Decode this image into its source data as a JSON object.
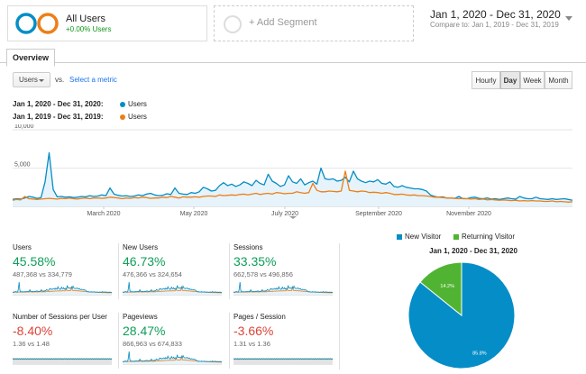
{
  "segments": {
    "primary": {
      "title": "All Users",
      "change": "+0.00% Users"
    },
    "add_label": "+ Add Segment"
  },
  "date_range": {
    "current": "Jan 1, 2020 - Dec 31, 2020",
    "compare_prefix": "Compare to:",
    "compare": "Jan 1, 2019 - Dec 31, 2019"
  },
  "tabs": [
    {
      "label": "Overview"
    }
  ],
  "metric_selector": {
    "value": "Users",
    "vs": "vs.",
    "select_label": "Select a metric"
  },
  "granularity": [
    "Hourly",
    "Day",
    "Week",
    "Month"
  ],
  "granularity_active": "Day",
  "legend": {
    "current_range": "Jan 1, 2020 - Dec 31, 2020:",
    "previous_range": "Jan 1, 2019 - Dec 31, 2019:",
    "series_name": "Users"
  },
  "colors": {
    "current": "#058dc7",
    "previous": "#ed7e17",
    "positive": "#0f9d58",
    "negative": "#db4437",
    "new_visitor": "#058dc7",
    "returning_visitor": "#50b432"
  },
  "chart_data": {
    "type": "line",
    "ylim": [
      0,
      10000
    ],
    "yticks": [
      "10,000",
      "5,000"
    ],
    "xticks": [
      "March 2020",
      "May 2020",
      "July 2020",
      "September 2020",
      "November 2020"
    ],
    "series": [
      {
        "name": "Users",
        "period": "Jan 1, 2020 - Dec 31, 2020",
        "values": [
          900,
          1000,
          950,
          1100,
          1300,
          1200,
          1050,
          1150,
          3200,
          7000,
          2200,
          1250,
          1300,
          1200,
          1250,
          1150,
          1200,
          1300,
          1250,
          1400,
          1300,
          1350,
          1500,
          1400,
          2400,
          1600,
          1450,
          1350,
          1400,
          1300,
          1350,
          1500,
          1400,
          1600,
          1700,
          1500,
          1400,
          1450,
          1650,
          1550,
          2400,
          1700,
          1600,
          1550,
          1800,
          1700,
          1900,
          2500,
          2300,
          2000,
          2100,
          2700,
          3100,
          2700,
          2900,
          2600,
          2800,
          3200,
          3000,
          2700,
          3400,
          3000,
          2800,
          4200,
          3300,
          3000,
          2600,
          2800,
          4000,
          3200,
          3000,
          3600,
          2800,
          3100,
          3300,
          2900,
          5000,
          3600,
          3500,
          3600,
          3300,
          3400,
          3800,
          3200,
          4600,
          3600,
          3300,
          3100,
          3300,
          3200,
          3500,
          3000,
          2900,
          3200,
          2600,
          2500,
          2700,
          2500,
          2400,
          2300,
          2300,
          2200,
          2000,
          1500,
          1300,
          1200,
          1250,
          1100,
          1100,
          1050,
          1300,
          1000,
          1000,
          1150,
          1200,
          1050,
          1000,
          1100,
          950,
          1000,
          900,
          1000,
          1100,
          1000,
          950,
          1300,
          1100,
          1000,
          1000,
          1200,
          1000,
          950,
          900,
          1000,
          900,
          950,
          1000,
          900,
          800
        ]
      },
      {
        "name": "Users",
        "period": "Jan 1, 2019 - Dec 31, 2019",
        "values": [
          800,
          900,
          850,
          1300,
          1000,
          950,
          900,
          950,
          1000,
          1050,
          1000,
          950,
          1050,
          1000,
          1100,
          1000,
          950,
          1050,
          1100,
          1000,
          1100,
          1100,
          1050,
          1100,
          1200,
          1150,
          1100,
          1000,
          1100,
          1050,
          1150,
          1100,
          1200,
          1150,
          1050,
          1100,
          1100,
          1200,
          1150,
          1300,
          1200,
          1100,
          1250,
          1200,
          1200,
          1250,
          1200,
          1300,
          1350,
          1350,
          1300,
          1500,
          1400,
          1450,
          1500,
          1450,
          1550,
          1600,
          1500,
          1600,
          1700,
          1550,
          1650,
          1700,
          1600,
          1800,
          1750,
          1650,
          1700,
          1700,
          1900,
          1800,
          1700,
          1800,
          3000,
          2100,
          1900,
          1900,
          2000,
          1950,
          1900,
          2000,
          4600,
          2100,
          2000,
          1900,
          2000,
          1950,
          1800,
          1850,
          1800,
          1700,
          1800,
          1700,
          1550,
          1550,
          1600,
          1500,
          1450,
          1500,
          1400,
          1400,
          1350,
          1300,
          1200,
          1200,
          1150,
          1100,
          1100,
          1050,
          1000,
          1050,
          1000,
          950,
          1000,
          900,
          950,
          850,
          900,
          850,
          800,
          850,
          800,
          750,
          800,
          700,
          750,
          700,
          750,
          700,
          700,
          650,
          650,
          700,
          600,
          650,
          600,
          550,
          600
        ]
      }
    ]
  },
  "scorecards": [
    {
      "title": "Users",
      "value": "45.58%",
      "comparison": "487,368 vs 334,779",
      "trend": "positive"
    },
    {
      "title": "New Users",
      "value": "46.73%",
      "comparison": "476,366 vs 324,654",
      "trend": "positive"
    },
    {
      "title": "Sessions",
      "value": "33.35%",
      "comparison": "662,578 vs 496,856",
      "trend": "positive"
    },
    {
      "title": "Number of Sessions per User",
      "value": "-8.40%",
      "comparison": "1.36 vs 1.48",
      "trend": "negative"
    },
    {
      "title": "Pageviews",
      "value": "28.47%",
      "comparison": "866,963 vs 674,833",
      "trend": "positive"
    },
    {
      "title": "Pages / Session",
      "value": "-3.66%",
      "comparison": "1.31 vs 1.36",
      "trend": "negative"
    }
  ],
  "pie": {
    "title": "Jan 1, 2020 - Dec 31, 2020",
    "legend": [
      "New Visitor",
      "Returning Visitor"
    ],
    "slices": [
      {
        "name": "New Visitor",
        "value": 85.8,
        "label": "85.8%"
      },
      {
        "name": "Returning Visitor",
        "value": 14.2,
        "label": "14.2%"
      }
    ]
  }
}
